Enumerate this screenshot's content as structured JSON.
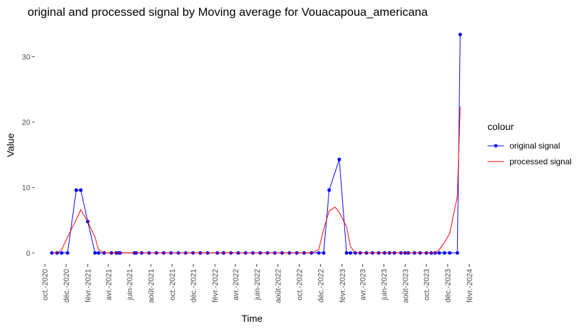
{
  "chart_data": {
    "type": "line",
    "title": "original and processed signal by Moving average for Vouacapoua_americana",
    "xlabel": "Time",
    "ylabel": "Value",
    "xlim": [
      "2020-09-01",
      "2024-02-10"
    ],
    "ylim": [
      -1.7,
      35.2
    ],
    "y_ticks": [
      0,
      10,
      20,
      30
    ],
    "x_tick_dates": [
      "2020-10-01",
      "2020-12-01",
      "2021-02-01",
      "2021-04-01",
      "2021-06-01",
      "2021-08-01",
      "2021-10-01",
      "2021-12-01",
      "2022-02-01",
      "2022-04-01",
      "2022-06-01",
      "2022-08-01",
      "2022-10-01",
      "2022-12-01",
      "2023-02-01",
      "2023-04-01",
      "2023-06-01",
      "2023-08-01",
      "2023-10-01",
      "2023-12-01",
      "2024-02-01"
    ],
    "x_tick_labels": [
      "oct.-2020",
      "déc.-2020",
      "févr.-2021",
      "avr.-2021",
      "juin-2021",
      "août-2021",
      "oct.-2021",
      "déc.-2021",
      "févr.-2022",
      "avr.-2022",
      "juin-2022",
      "août-2022",
      "oct.-2022",
      "déc.-2022",
      "févr.-2023",
      "avr.-2023",
      "juin-2023",
      "août-2023",
      "oct.-2023",
      "déc.-2023",
      "févr.-2024"
    ],
    "grid": false,
    "legend_position": "right",
    "legend_title": "colour",
    "series": [
      {
        "name": "original signal",
        "color": "#0000ff",
        "markers": true,
        "x": [
          "2020-10-21",
          "2020-11-05",
          "2020-11-18",
          "2020-12-05",
          "2020-12-30",
          "2021-01-12",
          "2021-02-01",
          "2021-02-22",
          "2021-03-04",
          "2021-03-20",
          "2021-04-10",
          "2021-04-24",
          "2021-05-01",
          "2021-05-05",
          "2021-06-15",
          "2021-06-20",
          "2021-07-06",
          "2021-07-27",
          "2021-08-17",
          "2021-09-07",
          "2021-09-28",
          "2021-10-19",
          "2021-11-09",
          "2021-11-30",
          "2021-12-21",
          "2022-01-11",
          "2022-02-08",
          "2022-02-26",
          "2022-03-19",
          "2022-04-09",
          "2022-04-30",
          "2022-05-21",
          "2022-06-11",
          "2022-07-02",
          "2022-07-23",
          "2022-08-13",
          "2022-09-03",
          "2022-09-24",
          "2022-10-15",
          "2022-11-05",
          "2022-11-26",
          "2022-12-10",
          "2022-12-26",
          "2023-01-24",
          "2023-02-14",
          "2023-02-25",
          "2023-03-11",
          "2023-03-25",
          "2023-04-12",
          "2023-04-29",
          "2023-05-17",
          "2023-06-03",
          "2023-06-17",
          "2023-07-01",
          "2023-07-20",
          "2023-08-01",
          "2023-08-10",
          "2023-08-28",
          "2023-09-13",
          "2023-10-01",
          "2023-10-15",
          "2023-10-26",
          "2023-11-07",
          "2023-11-22",
          "2023-12-07",
          "2023-12-29",
          "2024-01-06"
        ],
        "values": [
          0,
          0,
          0,
          0,
          9.6,
          9.6,
          4.8,
          0,
          0,
          0,
          0,
          0,
          0,
          0,
          0,
          0,
          0,
          0,
          0,
          0,
          0,
          0,
          0,
          0,
          0,
          0,
          0,
          0,
          0,
          0,
          0,
          0,
          0,
          0,
          0,
          0,
          0,
          0,
          0,
          0,
          0,
          0,
          9.6,
          14.3,
          0,
          0,
          0,
          0,
          0,
          0,
          0,
          0,
          0,
          0,
          0,
          0,
          0,
          0,
          0,
          0,
          0,
          0,
          0,
          0,
          0,
          0,
          33.4
        ]
      },
      {
        "name": "processed signal",
        "color": "#ff0000",
        "markers": false,
        "x": [
          "2020-10-21",
          "2020-11-05",
          "2020-11-18",
          "2020-12-05",
          "2020-12-30",
          "2021-01-12",
          "2021-02-01",
          "2021-02-22",
          "2021-03-04",
          "2021-03-20",
          "2021-04-10",
          "2022-11-05",
          "2022-11-26",
          "2022-12-10",
          "2022-12-26",
          "2023-01-12",
          "2023-01-24",
          "2023-02-14",
          "2023-02-25",
          "2023-03-11",
          "2023-10-26",
          "2023-11-07",
          "2023-11-22",
          "2023-12-07",
          "2023-12-29",
          "2024-01-06"
        ],
        "values": [
          0,
          0,
          0.5,
          2.4,
          5.1,
          6.6,
          4.8,
          2.4,
          0.5,
          0,
          0,
          0,
          0.5,
          3.6,
          6.4,
          7.0,
          6.2,
          4.0,
          1.0,
          0,
          0,
          0.5,
          1.6,
          3.0,
          8.7,
          22.4
        ]
      }
    ]
  }
}
